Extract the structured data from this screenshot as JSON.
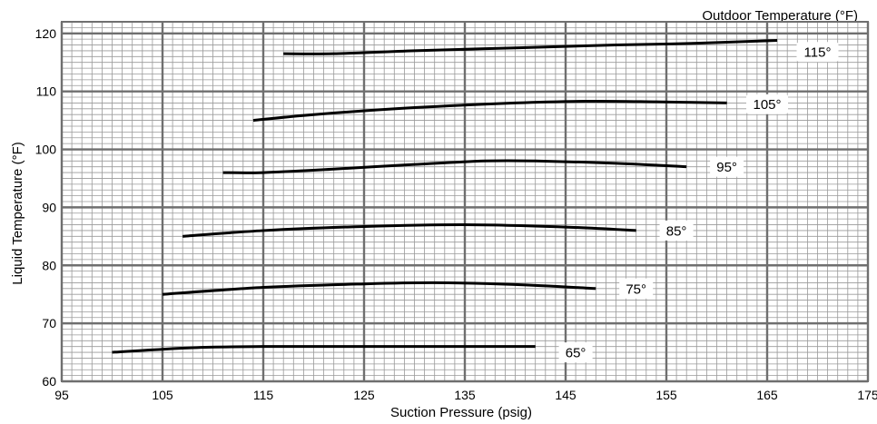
{
  "chart_data": {
    "type": "line",
    "title": "",
    "legend_title": "Outdoor Temperature (°F)",
    "xlabel": "Suction Pressure (psig)",
    "ylabel": "Liquid  Temperature  (°F)",
    "xlim": [
      95,
      175
    ],
    "ylim": [
      60,
      122
    ],
    "xticks": [
      "95",
      "105",
      "115",
      "125",
      "135",
      "145",
      "155",
      "165",
      "175"
    ],
    "yticks": [
      "60",
      "70",
      "80",
      "90",
      "100",
      "110",
      "120"
    ],
    "grid": true,
    "series": [
      {
        "name": "115°",
        "points": [
          [
            117,
            116.5
          ],
          [
            122,
            116.5
          ],
          [
            130,
            117
          ],
          [
            140,
            117.5
          ],
          [
            150,
            118
          ],
          [
            158,
            118.3
          ],
          [
            166,
            118.8
          ]
        ]
      },
      {
        "name": "105°",
        "points": [
          [
            114,
            105
          ],
          [
            120,
            106
          ],
          [
            130,
            107.2
          ],
          [
            140,
            108
          ],
          [
            147,
            108.3
          ],
          [
            154,
            108.2
          ],
          [
            161,
            108
          ]
        ]
      },
      {
        "name": "95°",
        "points": [
          [
            111,
            96
          ],
          [
            115,
            96
          ],
          [
            122,
            96.6
          ],
          [
            130,
            97.4
          ],
          [
            137,
            98
          ],
          [
            142,
            98
          ],
          [
            150,
            97.6
          ],
          [
            157,
            97
          ]
        ]
      },
      {
        "name": "85°",
        "points": [
          [
            107,
            85
          ],
          [
            115,
            86
          ],
          [
            125,
            86.7
          ],
          [
            135,
            87
          ],
          [
            145,
            86.6
          ],
          [
            152,
            86
          ]
        ]
      },
      {
        "name": "75°",
        "points": [
          [
            105,
            75
          ],
          [
            115,
            76.2
          ],
          [
            125,
            76.8
          ],
          [
            132,
            77
          ],
          [
            140,
            76.7
          ],
          [
            148,
            76
          ]
        ]
      },
      {
        "name": "65°",
        "points": [
          [
            100,
            65
          ],
          [
            108,
            65.8
          ],
          [
            115,
            66
          ],
          [
            125,
            66
          ],
          [
            135,
            66
          ],
          [
            142,
            66
          ]
        ]
      }
    ],
    "label_anchor": [
      {
        "text": "115°",
        "x": 170.0,
        "y": 116.8
      },
      {
        "text": "105°",
        "x": 165.0,
        "y": 107.8
      },
      {
        "text": "95°",
        "x": 161.0,
        "y": 97.0
      },
      {
        "text": "85°",
        "x": 156.0,
        "y": 86.0
      },
      {
        "text": "75°",
        "x": 152.0,
        "y": 76.0
      },
      {
        "text": "65°",
        "x": 146.0,
        "y": 65.0
      }
    ]
  }
}
